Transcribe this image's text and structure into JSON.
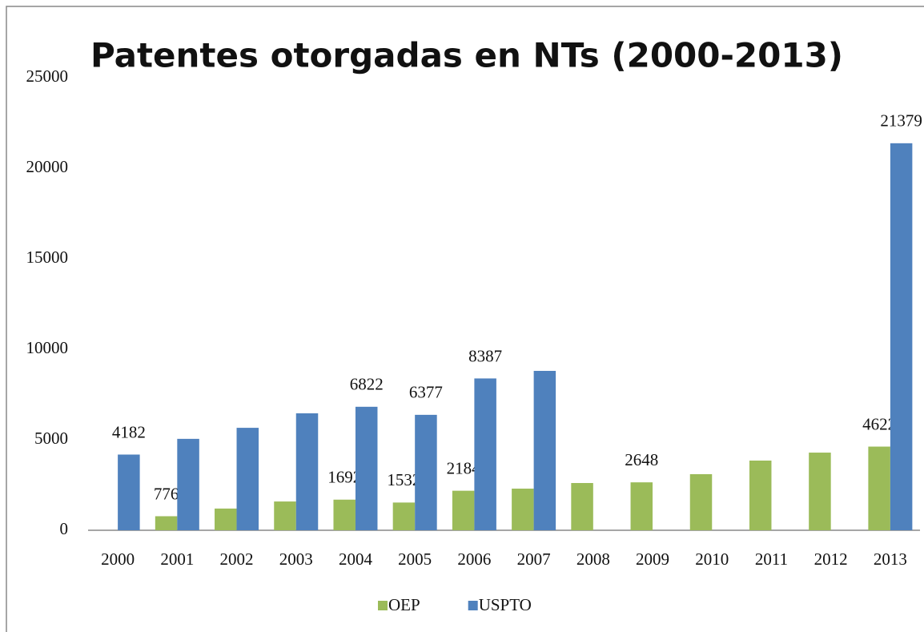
{
  "chart_data": {
    "type": "bar",
    "title": "Patentes otorgadas en NTs (2000-2013)",
    "categories": [
      "2000",
      "2001",
      "2002",
      "2003",
      "2004",
      "2005",
      "2006",
      "2007",
      "2008",
      "2009",
      "2010",
      "2011",
      "2012",
      "2013"
    ],
    "series": [
      {
        "name": "OEP",
        "color": "#9bbb59",
        "values": [
          null,
          776,
          1200,
          1590,
          1692,
          1532,
          2184,
          2300,
          2610,
          2648,
          3100,
          3850,
          4290,
          4622
        ],
        "value_labels": [
          null,
          "776",
          null,
          null,
          "1692",
          "1532",
          "2184",
          null,
          null,
          "2648",
          null,
          null,
          null,
          "4622"
        ]
      },
      {
        "name": "USPTO",
        "color": "#4f81bd",
        "values": [
          4182,
          5050,
          5660,
          6460,
          6822,
          6377,
          8387,
          8805,
          null,
          null,
          null,
          null,
          null,
          21379
        ],
        "value_labels": [
          "4182",
          null,
          null,
          null,
          "6822",
          "6377",
          "8387",
          null,
          null,
          null,
          null,
          null,
          null,
          "21379"
        ]
      }
    ],
    "ylim": [
      0,
      25000
    ],
    "yticks": [
      0,
      5000,
      10000,
      15000,
      20000,
      25000
    ],
    "grid": false,
    "legend": "bottom"
  }
}
